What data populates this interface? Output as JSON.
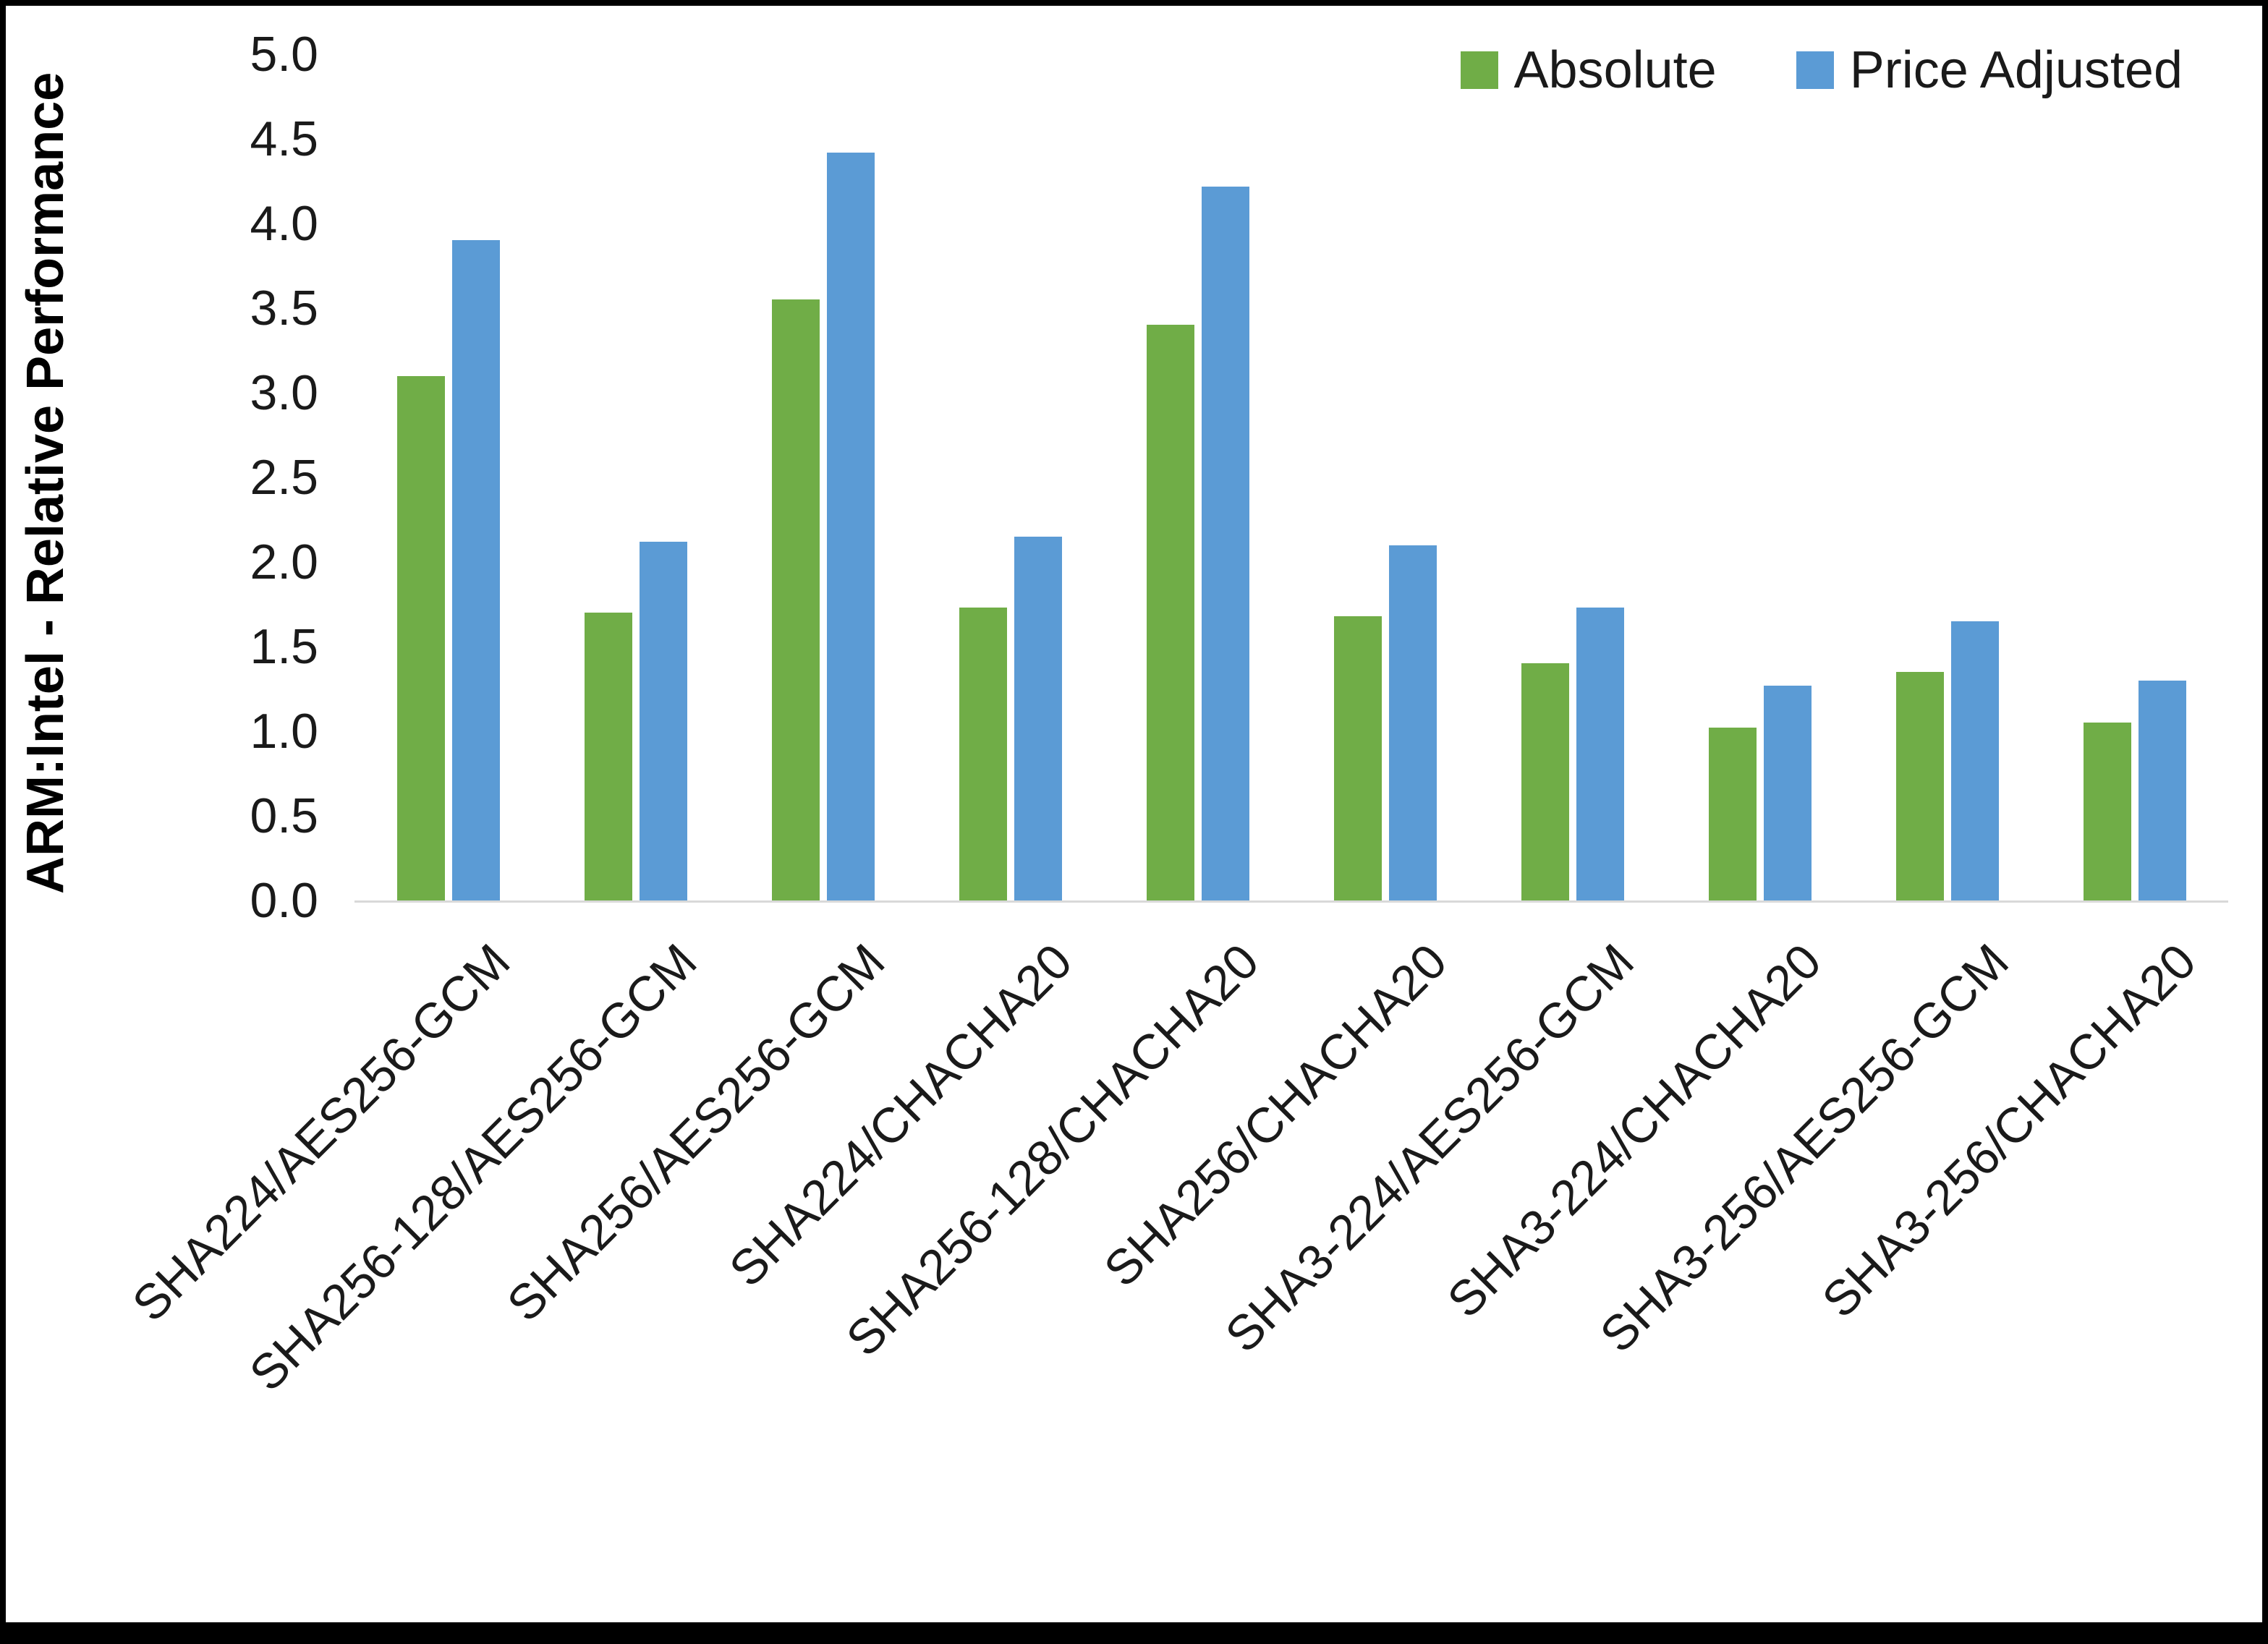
{
  "chart_data": {
    "type": "bar",
    "title": "",
    "xlabel": "",
    "ylabel": "ARM:Intel - Relative Performance",
    "ylim": [
      0,
      5
    ],
    "ytick_step": 0.5,
    "grid": false,
    "legend_position": "top-right",
    "background_color": "#FFFFFF",
    "frame_color": "#000000",
    "baseline_color": "#D9D9D9",
    "categories": [
      "SHA224/AES256-GCM",
      "SHA256-128/AES256-GCM",
      "SHA256/AES256-GCM",
      "SHA224/CHACHA20",
      "SHA256-128/CHACHA20",
      "SHA256/CHACHA20",
      "SHA3-224/AES256-GCM",
      "SHA3-224/CHACHA20",
      "SHA3-256/AES256-GCM",
      "SHA3-256/CHACHA20"
    ],
    "series": [
      {
        "name": "Absolute",
        "color": "#70AD47",
        "values": [
          3.1,
          1.7,
          3.55,
          1.73,
          3.4,
          1.68,
          1.4,
          1.02,
          1.35,
          1.05
        ]
      },
      {
        "name": "Price Adjusted",
        "color": "#5B9BD5",
        "values": [
          3.9,
          2.12,
          4.42,
          2.15,
          4.22,
          2.1,
          1.73,
          1.27,
          1.65,
          1.3
        ]
      }
    ]
  }
}
